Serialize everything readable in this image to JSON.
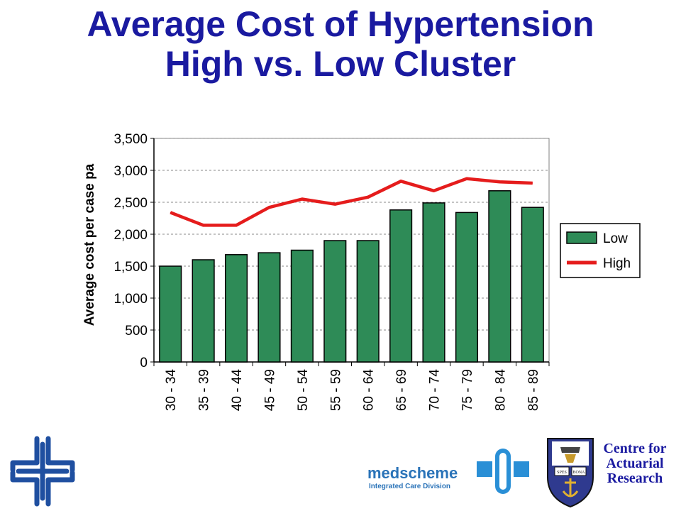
{
  "title_line1": "Average Cost of Hypertension",
  "title_line2": "High vs. Low Cluster",
  "chart_data": {
    "type": "bar",
    "categories": [
      "30 - 34",
      "35 - 39",
      "40 - 44",
      "45 - 49",
      "50 - 54",
      "55 - 59",
      "60 - 64",
      "65 - 69",
      "70 - 74",
      "75 - 79",
      "80 - 84",
      "85 - 89"
    ],
    "series": [
      {
        "name": "Low",
        "type": "bar",
        "color": "#2e8b57",
        "values": [
          1500,
          1600,
          1680,
          1710,
          1750,
          1900,
          1900,
          2380,
          2490,
          2340,
          2680,
          2420
        ]
      },
      {
        "name": "High",
        "type": "line",
        "color": "#e51c1c",
        "values": [
          2340,
          2140,
          2140,
          2420,
          2550,
          2470,
          2580,
          2830,
          2680,
          2870,
          2820,
          2800
        ]
      }
    ],
    "ylabel": "Average cost per case pa",
    "ylim": [
      0,
      3500
    ],
    "yticks": [
      0,
      500,
      1000,
      1500,
      2000,
      2500,
      3000,
      3500
    ],
    "ytick_labels": [
      "0",
      "500",
      "1,000",
      "1,500",
      "2,000",
      "2,500",
      "3,000",
      "3,500"
    ],
    "grid": true,
    "legend_position": "right"
  },
  "logos": {
    "medscheme": "medscheme",
    "medscheme_sub": "Integrated Care Division",
    "cfar_line1": "Centre for",
    "cfar_line2": "Actuarial",
    "cfar_line3": "Research",
    "shield_text_left": "SPES",
    "shield_text_right": "BONA"
  }
}
